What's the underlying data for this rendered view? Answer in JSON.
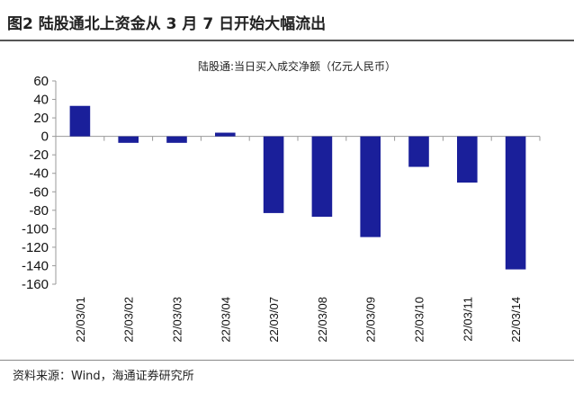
{
  "figure_title": "图2  陆股通北上资金从 3 月 7 日开始大幅流出",
  "source": "资料来源：Wind，海通证券研究所",
  "chart_data": {
    "type": "bar",
    "title": "陆股通:当日买入成交净额（亿元人民币）",
    "categories": [
      "22/03/01",
      "22/03/02",
      "22/03/03",
      "22/03/04",
      "22/03/07",
      "22/03/08",
      "22/03/09",
      "22/03/10",
      "22/03/11",
      "22/03/14"
    ],
    "values": [
      33,
      -7,
      -7,
      4,
      -83,
      -87,
      -109,
      -33,
      -50,
      -144
    ],
    "ylim": [
      -160,
      60
    ],
    "yticks": [
      60,
      40,
      20,
      0,
      -20,
      -40,
      -60,
      -80,
      -100,
      -120,
      -140,
      -160
    ],
    "grid": false,
    "bar_color": "#1a1f9a"
  }
}
